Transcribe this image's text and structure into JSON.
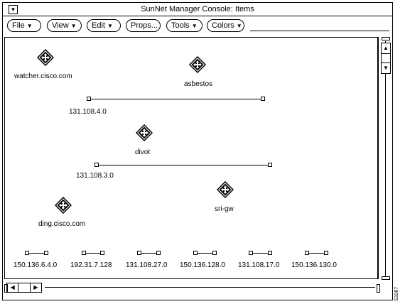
{
  "window": {
    "title": "SunNet Manager Console: Items",
    "menu_glyph": "▼"
  },
  "toolbar": {
    "buttons": [
      {
        "label": "File",
        "has_menu": true
      },
      {
        "label": "View",
        "has_menu": true
      },
      {
        "label": "Edit",
        "has_menu": true
      },
      {
        "label": "Props...",
        "has_menu": false
      },
      {
        "label": "Tools",
        "has_menu": true
      },
      {
        "label": "Colors",
        "has_menu": true
      }
    ],
    "menu_arrow": "▼"
  },
  "canvas": {
    "devices": [
      {
        "label": "watcher.cisco.com",
        "icon": "router-icon"
      },
      {
        "label": "asbestos",
        "icon": "router-icon"
      },
      {
        "label": "divot",
        "icon": "router-icon"
      },
      {
        "label": "sri-gw",
        "icon": "router-icon"
      },
      {
        "label": "ding.cisco.com",
        "icon": "router-icon"
      }
    ],
    "networks": [
      {
        "label": "131.108.4.0"
      },
      {
        "label": "131.108.3.0"
      },
      {
        "label": "150.136.6.4.0"
      },
      {
        "label": "192.31.7.128"
      },
      {
        "label": "131.108.27.0"
      },
      {
        "label": "150.136.128.0"
      },
      {
        "label": "131.108.17.0"
      },
      {
        "label": "150.136.130.0"
      }
    ]
  },
  "scrollbars": {
    "up_arrow": "▲",
    "down_arrow": "▼",
    "left_arrow": "◀",
    "right_arrow": "▶"
  },
  "side_tag": "S3267"
}
